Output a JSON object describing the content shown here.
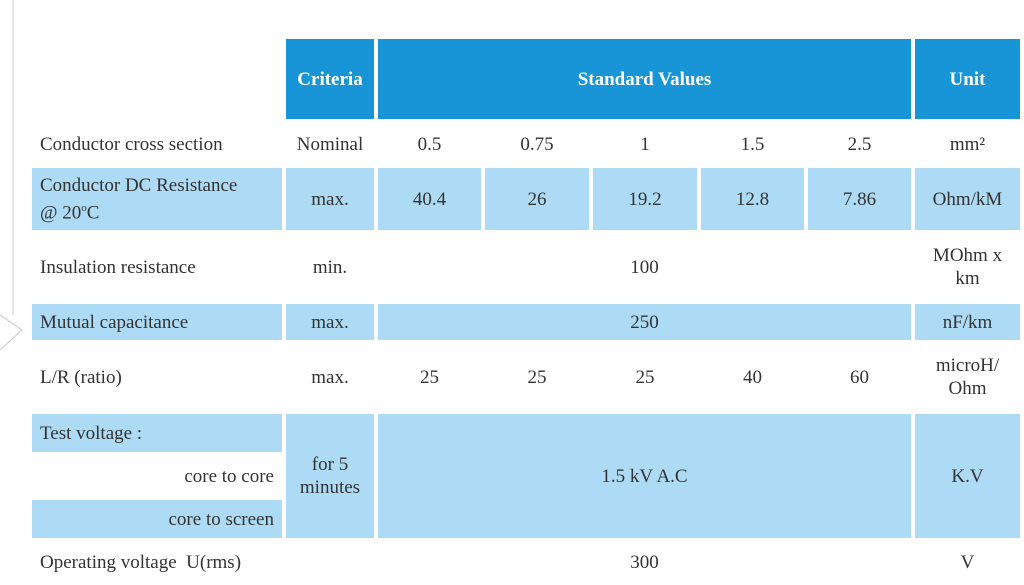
{
  "header": {
    "criteria": "Criteria",
    "standard_values": "Standard Values",
    "unit": "Unit"
  },
  "rows": {
    "cross_section": {
      "label": "Conductor cross section",
      "criteria": "Nominal",
      "values": [
        "0.5",
        "0.75",
        "1",
        "1.5",
        "2.5"
      ],
      "unit": "mm²"
    },
    "dc_resistance": {
      "label_line1": "Conductor DC Resistance",
      "label_line2_prefix": "@ 20",
      "label_line2_sup": "o",
      "label_line2_suffix": "C",
      "criteria": "max.",
      "values": [
        "40.4",
        "26",
        "19.2",
        "12.8",
        "7.86"
      ],
      "unit": "Ohm/kM"
    },
    "insulation": {
      "label": "Insulation resistance",
      "criteria": "min.",
      "value": "100",
      "unit_line1": "MOhm x",
      "unit_line2": "km"
    },
    "capacitance": {
      "label": "Mutual capacitance",
      "criteria": "max.",
      "value": "250",
      "unit": "nF/km"
    },
    "lr_ratio": {
      "label": "L/R (ratio)",
      "criteria": "max.",
      "values": [
        "25",
        "25",
        "25",
        "40",
        "60"
      ],
      "unit_line1": "microH/",
      "unit_line2": "Ohm"
    },
    "test_voltage": {
      "label": "Test voltage :",
      "sub1": "core to core",
      "sub2": "core to screen",
      "criteria_line1": "for 5",
      "criteria_line2": "minutes",
      "value": "1.5 kV A.C",
      "unit": "K.V"
    },
    "operating_voltage": {
      "label": "Operating voltage  U(rms)",
      "value": "300",
      "unit": "V"
    }
  }
}
